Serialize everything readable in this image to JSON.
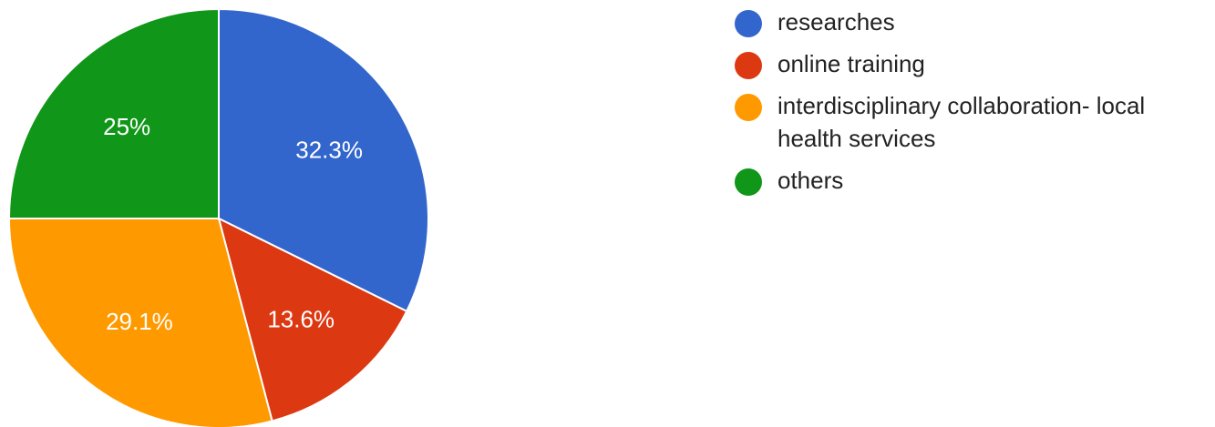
{
  "chart_data": {
    "type": "pie",
    "slices": [
      {
        "name": "researches",
        "value": 32.3,
        "label": "32.3%",
        "color": "#3366cc"
      },
      {
        "name": "online training",
        "value": 13.6,
        "label": "13.6%",
        "color": "#dc3912"
      },
      {
        "name": "interdisciplinary collaboration- local health services",
        "value": 29.1,
        "label": "29.1%",
        "color": "#ff9900"
      },
      {
        "name": "others",
        "value": 25,
        "label": "25%",
        "color": "#109618"
      }
    ],
    "start_angle_deg": 0,
    "direction": "clockwise",
    "legend_position": "right"
  }
}
